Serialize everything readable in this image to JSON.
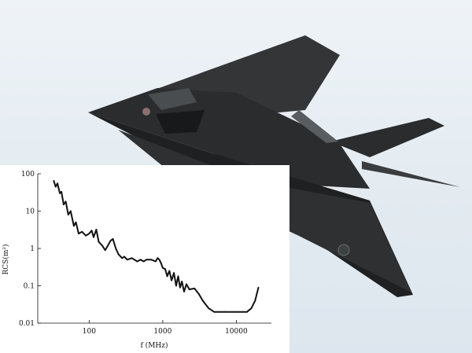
{
  "chart_data": {
    "type": "line",
    "title": "",
    "xlabel": "f (MHz)",
    "ylabel": "RCS(m²)",
    "xscale": "log",
    "yscale": "log",
    "xlim": [
      20,
      30000
    ],
    "ylim": [
      0.01,
      100
    ],
    "grid": false,
    "x_ticks": [
      {
        "value": 100,
        "label": "100"
      },
      {
        "value": 1000,
        "label": "1000"
      },
      {
        "value": 10000,
        "label": "10000"
      }
    ],
    "y_ticks": [
      {
        "value": 100,
        "label": "100"
      },
      {
        "value": 10,
        "label": "10"
      },
      {
        "value": 1,
        "label": "1"
      },
      {
        "value": 0.1,
        "label": "0.1"
      },
      {
        "value": 0.01,
        "label": "0.01"
      }
    ],
    "series": [
      {
        "color": "#111111",
        "points": [
          [
            33,
            65
          ],
          [
            35,
            45
          ],
          [
            37,
            55
          ],
          [
            40,
            30
          ],
          [
            42,
            33
          ],
          [
            45,
            15
          ],
          [
            48,
            18
          ],
          [
            52,
            8
          ],
          [
            56,
            10
          ],
          [
            62,
            4
          ],
          [
            66,
            5
          ],
          [
            72,
            2.5
          ],
          [
            80,
            2.8
          ],
          [
            90,
            2.2
          ],
          [
            100,
            2.5
          ],
          [
            108,
            3.0
          ],
          [
            115,
            2.0
          ],
          [
            125,
            3.2
          ],
          [
            135,
            1.5
          ],
          [
            150,
            1.2
          ],
          [
            165,
            0.9
          ],
          [
            180,
            1.2
          ],
          [
            195,
            1.6
          ],
          [
            210,
            1.8
          ],
          [
            230,
            1.0
          ],
          [
            250,
            0.7
          ],
          [
            280,
            0.55
          ],
          [
            300,
            0.6
          ],
          [
            330,
            0.5
          ],
          [
            380,
            0.55
          ],
          [
            450,
            0.45
          ],
          [
            500,
            0.5
          ],
          [
            550,
            0.45
          ],
          [
            600,
            0.5
          ],
          [
            700,
            0.5
          ],
          [
            800,
            0.45
          ],
          [
            850,
            0.55
          ],
          [
            900,
            0.5
          ],
          [
            950,
            0.4
          ],
          [
            1000,
            0.3
          ],
          [
            1080,
            0.28
          ],
          [
            1150,
            0.18
          ],
          [
            1230,
            0.25
          ],
          [
            1320,
            0.14
          ],
          [
            1420,
            0.22
          ],
          [
            1520,
            0.1
          ],
          [
            1620,
            0.18
          ],
          [
            1720,
            0.09
          ],
          [
            1820,
            0.13
          ],
          [
            1950,
            0.07
          ],
          [
            2100,
            0.11
          ],
          [
            2300,
            0.08
          ],
          [
            2700,
            0.085
          ],
          [
            3100,
            0.06
          ],
          [
            3500,
            0.04
          ],
          [
            4200,
            0.025
          ],
          [
            5000,
            0.02
          ],
          [
            7000,
            0.02
          ],
          [
            10000,
            0.02
          ],
          [
            14000,
            0.02
          ],
          [
            16000,
            0.025
          ],
          [
            18000,
            0.04
          ],
          [
            20000,
            0.09
          ]
        ]
      }
    ]
  },
  "colors": {
    "aircraft_body": "#2b2d2e",
    "aircraft_shadow": "#1a1b1c",
    "aircraft_highlight": "#4a4d4f",
    "sky": "#e3ebf1"
  },
  "icons": {
    "aircraft": "stealth-aircraft-icon",
    "insignia": "roundel-insignia-icon"
  }
}
